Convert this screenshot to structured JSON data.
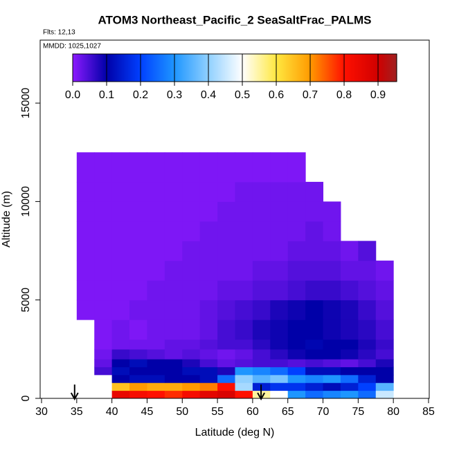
{
  "chart_data": {
    "type": "heatmap",
    "title": "ATOM3 Northeast_Pacific_2 SeaSaltFrac_PALMS",
    "annotations": [
      "Flts: 12,13",
      "MMDD: 1025,1027"
    ],
    "x_label": "Latitude (deg N)",
    "y_label": "Altitude (m)",
    "xlim": [
      30,
      85
    ],
    "xticks": [
      30,
      35,
      40,
      45,
      50,
      55,
      60,
      65,
      70,
      75,
      80,
      85
    ],
    "ylim": [
      0,
      18200
    ],
    "yticks": [
      0,
      5000,
      10000,
      15000
    ],
    "x_edges": [
      35,
      37.5,
      40,
      42.5,
      45,
      47.5,
      50,
      52.5,
      55,
      57.5,
      60,
      62.5,
      65,
      67.5,
      70,
      72.5,
      75,
      77.5,
      80
    ],
    "y_edges": [
      0,
      400,
      800,
      1200,
      1600,
      2000,
      2500,
      3000,
      4000,
      5000,
      6000,
      7000,
      8000,
      9000,
      10000,
      11000,
      12500
    ],
    "values": [
      [
        null,
        null,
        0.85,
        0.82,
        0.8,
        0.78,
        0.82,
        0.86,
        0.88,
        0.8,
        0.55,
        0.5,
        0.3,
        0.25,
        0.28,
        0.3,
        0.25,
        0.45
      ],
      [
        null,
        null,
        0.65,
        0.7,
        0.68,
        0.68,
        0.7,
        0.72,
        0.8,
        0.42,
        0.15,
        0.18,
        0.18,
        0.15,
        0.12,
        0.15,
        0.2,
        0.35
      ],
      [
        null,
        null,
        0.1,
        0.12,
        0.12,
        0.1,
        0.1,
        0.12,
        0.25,
        0.4,
        0.35,
        0.38,
        0.3,
        0.28,
        0.3,
        0.25,
        0.15,
        0.1
      ],
      [
        null,
        0.05,
        0.12,
        0.1,
        0.1,
        0.1,
        0.12,
        0.12,
        0.08,
        0.3,
        0.28,
        0.25,
        0.2,
        0.12,
        0.12,
        0.1,
        0.1,
        0.1
      ],
      [
        null,
        0.03,
        0.1,
        0.12,
        0.1,
        0.1,
        0.08,
        0.05,
        0.03,
        0.04,
        0.05,
        0.05,
        0.04,
        0.05,
        0.04,
        0.03,
        0.05,
        0.08
      ],
      [
        null,
        0.02,
        0.06,
        0.05,
        0.04,
        0.03,
        0.04,
        0.03,
        0.02,
        0.03,
        0.05,
        0.07,
        0.09,
        0.1,
        0.1,
        0.09,
        0.07,
        0.05
      ],
      [
        null,
        0.01,
        0.02,
        0.02,
        0.02,
        0.03,
        0.03,
        0.04,
        0.05,
        0.05,
        0.07,
        0.09,
        0.1,
        0.11,
        0.1,
        0.1,
        0.08,
        0.06
      ],
      [
        null,
        0.01,
        0.02,
        0.01,
        0.02,
        0.02,
        0.02,
        0.03,
        0.05,
        0.06,
        0.08,
        0.09,
        0.1,
        0.1,
        0.09,
        0.08,
        0.07,
        0.05
      ],
      [
        0.01,
        0.01,
        0.01,
        0.02,
        0.02,
        0.02,
        0.02,
        0.03,
        0.04,
        0.05,
        0.06,
        0.08,
        0.09,
        0.1,
        0.09,
        0.08,
        0.06,
        0.04
      ],
      [
        0.01,
        0.01,
        0.01,
        0.01,
        0.02,
        0.02,
        0.02,
        0.02,
        0.03,
        0.03,
        0.04,
        0.04,
        0.05,
        0.06,
        0.06,
        0.05,
        0.04,
        0.03
      ],
      [
        0.01,
        0.01,
        0.01,
        0.01,
        0.01,
        0.02,
        0.02,
        0.02,
        0.02,
        0.02,
        0.03,
        0.03,
        0.04,
        0.04,
        0.04,
        0.03,
        0.03,
        0.02
      ],
      [
        0.01,
        0.01,
        0.01,
        0.01,
        0.01,
        0.01,
        0.02,
        0.02,
        0.02,
        0.02,
        0.02,
        0.02,
        0.03,
        0.03,
        0.03,
        0.02,
        0.04,
        null
      ],
      [
        0.01,
        0.01,
        0.01,
        0.01,
        0.01,
        0.01,
        0.01,
        0.02,
        0.02,
        0.02,
        0.02,
        0.02,
        0.02,
        0.03,
        0.02,
        null,
        null,
        null
      ],
      [
        0.01,
        0.01,
        0.01,
        0.01,
        0.01,
        0.01,
        0.01,
        0.01,
        0.02,
        0.02,
        0.02,
        0.02,
        0.02,
        0.02,
        0.02,
        null,
        null,
        null
      ],
      [
        0.01,
        0.01,
        0.01,
        0.01,
        0.01,
        0.01,
        0.01,
        0.01,
        0.01,
        0.02,
        0.02,
        0.02,
        0.02,
        0.02,
        null,
        null,
        null,
        null
      ],
      [
        0.01,
        0.01,
        0.01,
        0.01,
        0.01,
        0.01,
        0.01,
        0.01,
        0.01,
        0.01,
        0.01,
        0.01,
        0.01,
        null,
        null,
        null,
        null,
        null
      ]
    ],
    "colorbar": {
      "lim": [
        0,
        0.955
      ],
      "ticks": [
        {
          "value": 0,
          "label": "0.0"
        },
        0.1,
        0.2,
        0.3,
        0.4,
        0.5,
        0.6,
        0.7,
        0.8,
        0.9
      ],
      "color_stops": [
        {
          "value": 0,
          "color": "#8c1aff"
        },
        {
          "value": 0.1,
          "color": "#0000a8"
        },
        {
          "value": 0.2,
          "color": "#0040ff"
        },
        {
          "value": 0.3,
          "color": "#1e96ff"
        },
        {
          "value": 0.4,
          "color": "#90d0ff"
        },
        {
          "value": 0.5,
          "color": "#ffffff"
        },
        {
          "value": 0.6,
          "color": "#ffe840"
        },
        {
          "value": 0.7,
          "color": "#ff9a00"
        },
        {
          "value": 0.8,
          "color": "#ff1000"
        },
        {
          "value": 0.9,
          "color": "#d00000"
        },
        {
          "value": 0.955,
          "color": "#a02020"
        }
      ]
    },
    "arrows_x": [
      34.7,
      61.2
    ]
  }
}
